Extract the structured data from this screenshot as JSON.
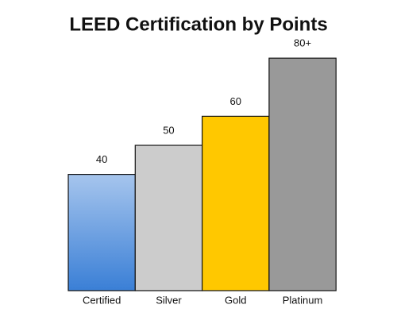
{
  "chart_data": {
    "type": "bar",
    "title": "LEED Certification by Points",
    "categories": [
      "Certified",
      "Silver",
      "Gold",
      "Platinum"
    ],
    "values": [
      40,
      50,
      60,
      80
    ],
    "value_labels": [
      "40",
      "50",
      "60",
      "80+"
    ],
    "colors": [
      "#3a7fd6",
      "#cccccc",
      "#ffc800",
      "#999999"
    ]
  }
}
